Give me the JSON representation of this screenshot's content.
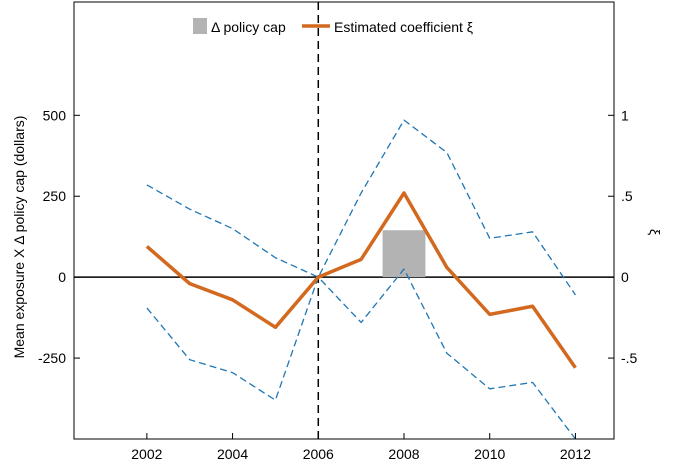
{
  "chart_data": {
    "type": "line",
    "x": [
      2002,
      2003,
      2004,
      2005,
      2006,
      2007,
      2008,
      2009,
      2010,
      2011,
      2012
    ],
    "xticks": [
      2002,
      2004,
      2006,
      2008,
      2010,
      2012
    ],
    "xtick_labels": [
      "2002",
      "2004",
      "2006",
      "2008",
      "2010",
      "2012"
    ],
    "xlim": [
      2000.3,
      2012.9
    ],
    "ylabel": "Mean exposure X Δ policy cap (dollars)",
    "ylim": [
      -500,
      850
    ],
    "yticks": [
      -250,
      0,
      250,
      500
    ],
    "ytick_labels": [
      "-250",
      "0",
      "250",
      "500"
    ],
    "y2label": "ξ",
    "y2lim": [
      -1,
      1.7
    ],
    "y2ticks": [
      -0.5,
      0,
      0.5,
      1
    ],
    "y2tick_labels": [
      "-.5",
      "0",
      ".5",
      "1"
    ],
    "reference_lines": {
      "horizontal_zero": true,
      "vertical_dashed_x": 2006
    },
    "bars": [
      {
        "name": "Δ policy cap",
        "x": 2008,
        "value": 145,
        "width": 1.0,
        "color": "#b3b3b3"
      }
    ],
    "series": [
      {
        "name": "Estimated coefficient ξ",
        "axis": "right",
        "color": "#d2691e",
        "values": [
          0.19,
          -0.04,
          -0.14,
          -0.31,
          0.0,
          0.11,
          0.52,
          0.06,
          -0.23,
          -0.18,
          -0.56
        ]
      },
      {
        "name": "",
        "axis": "right",
        "style": "dashed",
        "color": "#1f77b4",
        "values": [
          0.57,
          0.42,
          0.3,
          0.12,
          0.0,
          0.52,
          0.97,
          0.77,
          0.24,
          0.28,
          -0.11
        ]
      },
      {
        "name": "",
        "axis": "right",
        "style": "dashed",
        "color": "#1f77b4",
        "values": [
          -0.19,
          -0.51,
          -0.59,
          -0.76,
          0.0,
          -0.28,
          0.05,
          -0.47,
          -0.69,
          -0.65,
          -1.0
        ]
      }
    ],
    "legend": {
      "placement": "top-center",
      "entries": [
        {
          "label": "Δ policy cap",
          "kind": "patch",
          "color": "#b3b3b3"
        },
        {
          "label": "Estimated coefficient ξ",
          "kind": "line",
          "color": "#d2691e"
        }
      ]
    },
    "grid": false
  }
}
